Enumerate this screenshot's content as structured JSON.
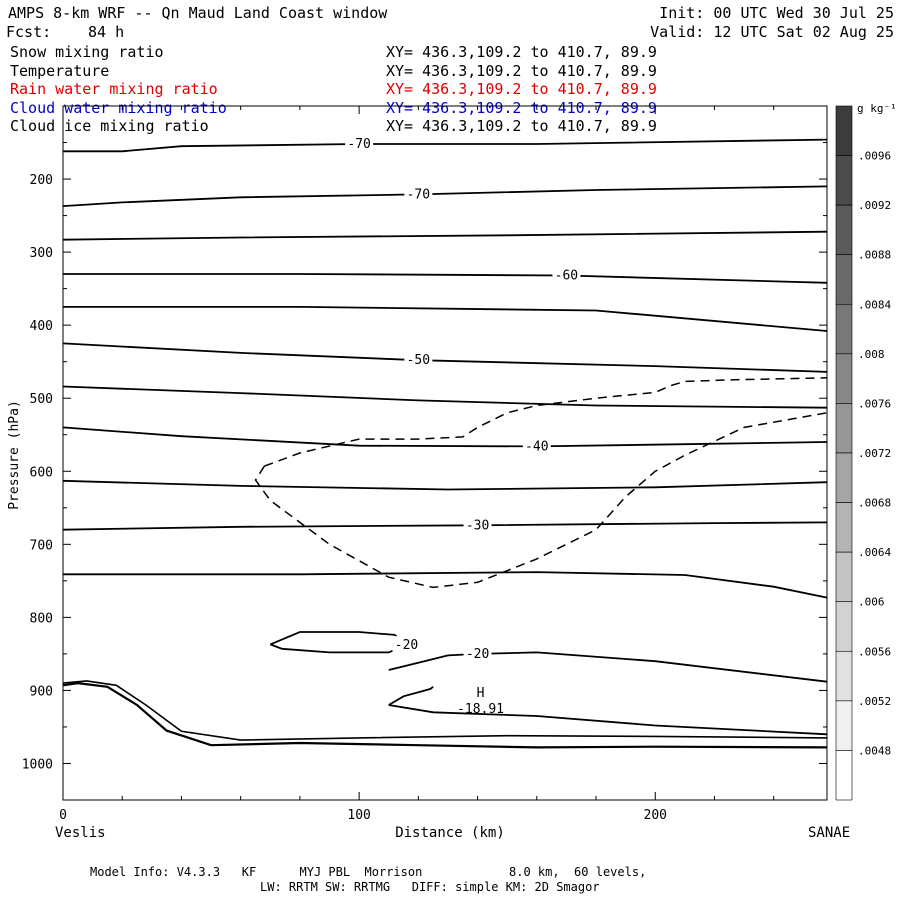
{
  "header": {
    "title": "AMPS 8-km WRF -- Qn Maud Land Coast window",
    "init": "Init: 00 UTC Wed 30 Jul 25",
    "fcst_label": "Fcst:",
    "fcst_value": "84 h",
    "valid": "Valid: 12 UTC Sat 02 Aug 25",
    "fields": [
      {
        "name": "Snow mixing ratio",
        "xy": "XY= 436.3,109.2 to 410.7, 89.9",
        "color": "#000000"
      },
      {
        "name": "Temperature",
        "xy": "XY= 436.3,109.2 to 410.7, 89.9",
        "color": "#000000"
      },
      {
        "name": "Rain water mixing ratio",
        "xy": "XY= 436.3,109.2 to 410.7, 89.9",
        "color": "#e00000"
      },
      {
        "name": "Cloud water mixing ratio",
        "xy": "XY= 436.3,109.2 to 410.7, 89.9",
        "color": "#0000d0"
      },
      {
        "name": "Cloud ice mixing ratio",
        "xy": "XY= 436.3,109.2 to 410.7, 89.9",
        "color": "#000000"
      }
    ]
  },
  "chart_data": {
    "type": "contour",
    "xlabel": "Distance (km)",
    "ylabel": "Pressure (hPa)",
    "xlim": [
      0,
      258
    ],
    "ylim": [
      1050,
      100
    ],
    "x_ticks": [
      0,
      100,
      200
    ],
    "y_ticks": [
      100,
      200,
      300,
      400,
      500,
      600,
      700,
      800,
      900,
      1000
    ],
    "left_endpoint": "Veslis",
    "right_endpoint": "SANAE",
    "colorbar": {
      "unit": "g kg⁻¹",
      "labels": [
        ".0096",
        ".0092",
        ".0088",
        ".0084",
        ".008",
        ".0076",
        ".0072",
        ".0068",
        ".0064",
        ".006",
        ".0056",
        ".0052",
        ".0048"
      ]
    },
    "temperature_contours": [
      {
        "label": "-70",
        "points": [
          [
            0,
            162
          ],
          [
            20,
            162
          ],
          [
            40,
            155
          ],
          [
            100,
            152
          ],
          [
            160,
            152
          ],
          [
            258,
            146
          ]
        ]
      },
      {
        "label": "-70",
        "points": [
          [
            0,
            237
          ],
          [
            20,
            232
          ],
          [
            60,
            225
          ],
          [
            120,
            221
          ],
          [
            180,
            215
          ],
          [
            258,
            210
          ]
        ]
      },
      {
        "label": "",
        "points": [
          [
            0,
            283
          ],
          [
            60,
            280
          ],
          [
            150,
            277
          ],
          [
            258,
            272
          ]
        ]
      },
      {
        "label": "-60",
        "points": [
          [
            0,
            330
          ],
          [
            80,
            330
          ],
          [
            170,
            332
          ],
          [
            258,
            342
          ]
        ]
      },
      {
        "label": "",
        "points": [
          [
            0,
            375
          ],
          [
            80,
            375
          ],
          [
            180,
            380
          ],
          [
            258,
            408
          ]
        ]
      },
      {
        "label": "-50",
        "points": [
          [
            0,
            425
          ],
          [
            60,
            438
          ],
          [
            120,
            448
          ],
          [
            200,
            456
          ],
          [
            258,
            464
          ]
        ]
      },
      {
        "label": "",
        "points": [
          [
            0,
            484
          ],
          [
            60,
            493
          ],
          [
            120,
            503
          ],
          [
            180,
            510
          ],
          [
            258,
            513
          ]
        ]
      },
      {
        "label": "-40",
        "points": [
          [
            0,
            540
          ],
          [
            40,
            552
          ],
          [
            100,
            565
          ],
          [
            160,
            566
          ],
          [
            210,
            563
          ],
          [
            258,
            560
          ]
        ]
      },
      {
        "label": "",
        "points": [
          [
            0,
            613
          ],
          [
            60,
            620
          ],
          [
            130,
            625
          ],
          [
            200,
            622
          ],
          [
            258,
            615
          ]
        ]
      },
      {
        "label": "-30",
        "points": [
          [
            0,
            680
          ],
          [
            60,
            676
          ],
          [
            140,
            674
          ],
          [
            220,
            671
          ],
          [
            258,
            670
          ]
        ]
      },
      {
        "label": "",
        "points": [
          [
            0,
            741
          ],
          [
            80,
            741
          ],
          [
            160,
            738
          ],
          [
            210,
            742
          ],
          [
            240,
            758
          ],
          [
            258,
            773
          ]
        ]
      },
      {
        "label": "-20",
        "points": [
          [
            70,
            837
          ],
          [
            80,
            820
          ],
          [
            100,
            820
          ],
          [
            112,
            824
          ],
          [
            116,
            838
          ],
          [
            110,
            848
          ],
          [
            90,
            848
          ],
          [
            74,
            843
          ],
          [
            70,
            837
          ]
        ]
      },
      {
        "label": "-20",
        "points": [
          [
            110,
            872
          ],
          [
            120,
            862
          ],
          [
            130,
            852
          ],
          [
            140,
            850
          ],
          [
            160,
            848
          ],
          [
            200,
            860
          ],
          [
            258,
            888
          ]
        ]
      },
      {
        "label": "",
        "points": [
          [
            110,
            920
          ],
          [
            115,
            908
          ],
          [
            124,
            898
          ],
          [
            125,
            895
          ],
          [
            125,
            895
          ]
        ]
      },
      {
        "label": "",
        "points": [
          [
            110,
            920
          ],
          [
            125,
            930
          ],
          [
            160,
            935
          ],
          [
            200,
            948
          ],
          [
            258,
            960
          ]
        ]
      }
    ],
    "cloud_ice_contour": {
      "style": "dashed",
      "points": [
        [
          68,
          593
        ],
        [
          80,
          575
        ],
        [
          100,
          556
        ],
        [
          120,
          556
        ],
        [
          135,
          553
        ],
        [
          140,
          540
        ],
        [
          150,
          520
        ],
        [
          160,
          510
        ],
        [
          180,
          500
        ],
        [
          200,
          492
        ],
        [
          205,
          483
        ],
        [
          210,
          477
        ],
        [
          225,
          475
        ],
        [
          258,
          472
        ]
      ]
    },
    "cloud_ice_contour_lower": {
      "style": "dashed",
      "points": [
        [
          68,
          593
        ],
        [
          65,
          612
        ],
        [
          70,
          640
        ],
        [
          90,
          700
        ],
        [
          110,
          745
        ],
        [
          125,
          759
        ],
        [
          140,
          752
        ],
        [
          160,
          720
        ],
        [
          180,
          680
        ],
        [
          190,
          635
        ],
        [
          200,
          600
        ],
        [
          210,
          578
        ],
        [
          230,
          540
        ],
        [
          258,
          520
        ]
      ]
    },
    "terrain": [
      [
        0,
        893
      ],
      [
        5,
        890
      ],
      [
        15,
        895
      ],
      [
        25,
        920
      ],
      [
        35,
        955
      ],
      [
        50,
        975
      ],
      [
        80,
        972
      ],
      [
        120,
        975
      ],
      [
        160,
        978
      ],
      [
        200,
        977
      ],
      [
        258,
        978
      ]
    ],
    "terrain_upper": [
      [
        0,
        890
      ],
      [
        8,
        887
      ],
      [
        18,
        893
      ],
      [
        28,
        920
      ],
      [
        40,
        956
      ],
      [
        60,
        968
      ],
      [
        100,
        965
      ],
      [
        150,
        962
      ],
      [
        200,
        963
      ],
      [
        258,
        965
      ]
    ],
    "high_marker": {
      "symbol": "H",
      "value": "-18.91",
      "x": 141,
      "p": 928
    }
  },
  "footer": {
    "line1": "Model Info: V4.3.3   KF      MYJ PBL  Morrison            8.0 km,  60 levels,",
    "line2": "LW: RRTM SW: RRTMG   DIFF: simple KM: 2D Smagor"
  }
}
